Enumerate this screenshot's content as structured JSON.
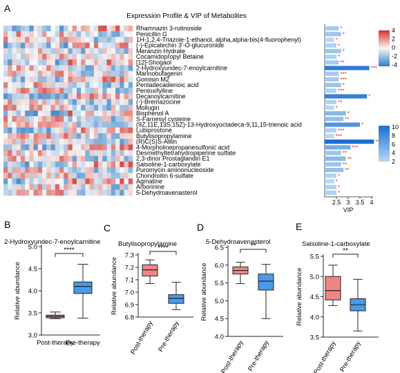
{
  "panels": {
    "A": {
      "letter": "A",
      "title": "Expression Profile & VIP of Metabolites"
    },
    "B": {
      "letter": "B"
    },
    "C": {
      "letter": "C"
    },
    "D": {
      "letter": "D"
    },
    "E": {
      "letter": "E"
    }
  },
  "colors": {
    "heat_high": "#d6302a",
    "heat_mid": "#f7f7f7",
    "heat_low": "#2e7cc4",
    "vip_low": "#b8d7f5",
    "vip_high": "#1a6fd1",
    "star": "#e8291f",
    "box_post": "#ef8585",
    "box_pre": "#4a9ae8"
  },
  "chart_data": [
    {
      "id": "heatmap",
      "type": "heatmap",
      "title": "Expression Profile & VIP of Metabolites",
      "rows": [
        "Rhamnazin 3-rutinoside",
        "Penicillin G",
        "1H-1,2,4-Triazole-1-ethanol, alpha,alpha-bis(4-fluorophenyl)",
        "(-)-Epicatechin 3'-O-glucuronide",
        "Meranzin Hydrate",
        "Cocamidopropyl Betaine",
        "[12]-Shogaol",
        "2-Hydroxyundec-7-enoylcarnitine",
        "Marinobufagenin",
        "Gomisin M2",
        "Pentadecadienoic acid",
        "Pentoxifylline",
        "Decanoylcarnitine",
        "(-)-Bremazocine",
        "Mollugin",
        "Bisphenol A",
        "S-Farnesyl cysteine",
        "(9Z,11E,13S,15Z)-13-Hydroxyoctadeca-9,11,15-trienoic acid",
        "Lubiprostone",
        "Butylisopropylamine",
        "(R)C(S)S-Alliin",
        "4-Morpholinepropanesulfonic acid",
        "Desmethyltetrahydropiperine sulfate",
        "2,3-dinor Prostaglandin E1",
        "Salsoline-1-carboxylate",
        "Puromycin aminonucleoside",
        "Chondroitin 6-sulfate",
        "Agmatine",
        "Arborinine",
        "5-Dehydroavenasterol"
      ],
      "colorbar_ticks": [
        "4",
        "2",
        "0",
        "-2",
        "-4"
      ]
    },
    {
      "id": "vip",
      "type": "bar",
      "xlabel": "VIP",
      "xlim": [
        2,
        4
      ],
      "xticks": [
        "2.5",
        "3",
        "3.5",
        "4"
      ],
      "values": [
        2.6,
        2.7,
        2.4,
        2.5,
        2.7,
        2.5,
        2.6,
        3.9,
        2.6,
        2.6,
        2.7,
        2.5,
        3.8,
        2.5,
        2.4,
        2.9,
        2.8,
        3.5,
        2.5,
        2.4,
        4.1,
        3.1,
        2.7,
        2.9,
        2.7,
        2.8,
        2.5,
        2.4,
        2.5,
        2.5
      ],
      "stars": [
        "*",
        "*",
        "*",
        "*",
        "*",
        "*",
        "**",
        "***",
        "***",
        "***",
        "*",
        "***",
        "*",
        "**",
        "*",
        "*",
        "**",
        "*",
        "***",
        "***",
        "***",
        "***",
        "**",
        "**",
        "**",
        "**",
        "*",
        "*",
        "*",
        "*"
      ],
      "colorbar_ticks": [
        "10",
        "8",
        "6",
        "4",
        "2"
      ]
    },
    {
      "id": "box-b",
      "type": "box",
      "title": "2-Hydroxyundec-7-enoylcarnitine",
      "ylabel": "Relative abundance",
      "ylim": [
        3.0,
        5.0
      ],
      "yticks": [
        "3.0",
        "3.5",
        "4.0",
        "4.5",
        "5.0"
      ],
      "categories": [
        "Post-therapy",
        "Pre-therapy"
      ],
      "boxes": [
        {
          "whisker_low": 3.37,
          "q1": 3.39,
          "median": 3.42,
          "q3": 3.45,
          "whisker_high": 3.52
        },
        {
          "whisker_low": 3.38,
          "q1": 3.94,
          "median": 4.1,
          "q3": 4.2,
          "whisker_high": 4.6
        }
      ],
      "significance": "****"
    },
    {
      "id": "box-c",
      "type": "box",
      "title": "Butylisopropylamine",
      "ylabel": "Relative abundance",
      "ylim": [
        6.8,
        7.3
      ],
      "yticks": [
        "6.8",
        "6.9",
        "7.0",
        "7.1",
        "7.2",
        "7.3"
      ],
      "categories": [
        "Post-therapy",
        "Pre-therapy"
      ],
      "boxes": [
        {
          "whisker_low": 7.07,
          "q1": 7.13,
          "median": 7.18,
          "q3": 7.22,
          "whisker_high": 7.26
        },
        {
          "whisker_low": 6.86,
          "q1": 6.91,
          "median": 6.95,
          "q3": 6.98,
          "whisker_high": 7.08
        }
      ],
      "significance": "****"
    },
    {
      "id": "box-d",
      "type": "box",
      "title": "5-Dehydroavenasterol",
      "ylabel": "Relative abundance",
      "ylim": [
        4.0,
        6.5
      ],
      "yticks": [
        "4.0",
        "4.5",
        "5.0",
        "5.5",
        "6.0",
        "6.5"
      ],
      "categories": [
        "Post-therapy",
        "Pre-therapy"
      ],
      "boxes": [
        {
          "whisker_low": 5.48,
          "q1": 5.75,
          "median": 5.85,
          "q3": 5.95,
          "whisker_high": 6.08
        },
        {
          "whisker_low": 4.5,
          "q1": 5.3,
          "median": 5.55,
          "q3": 5.75,
          "whisker_high": 6.02
        }
      ],
      "significance": "**"
    },
    {
      "id": "box-e",
      "type": "box",
      "title": "Salsoline-1-carboxylate",
      "ylabel": "Relative abundance",
      "ylim": [
        3.5,
        5.5
      ],
      "yticks": [
        "3.5",
        "4.0",
        "4.5",
        "5.0",
        "5.5"
      ],
      "categories": [
        "Post-therapy",
        "Pre-therapy"
      ],
      "boxes": [
        {
          "whisker_low": 4.28,
          "q1": 4.42,
          "median": 4.65,
          "q3": 5.0,
          "whisker_high": 5.28
        },
        {
          "whisker_low": 3.65,
          "q1": 4.15,
          "median": 4.3,
          "q3": 4.45,
          "whisker_high": 4.93
        }
      ],
      "significance": "**"
    }
  ]
}
